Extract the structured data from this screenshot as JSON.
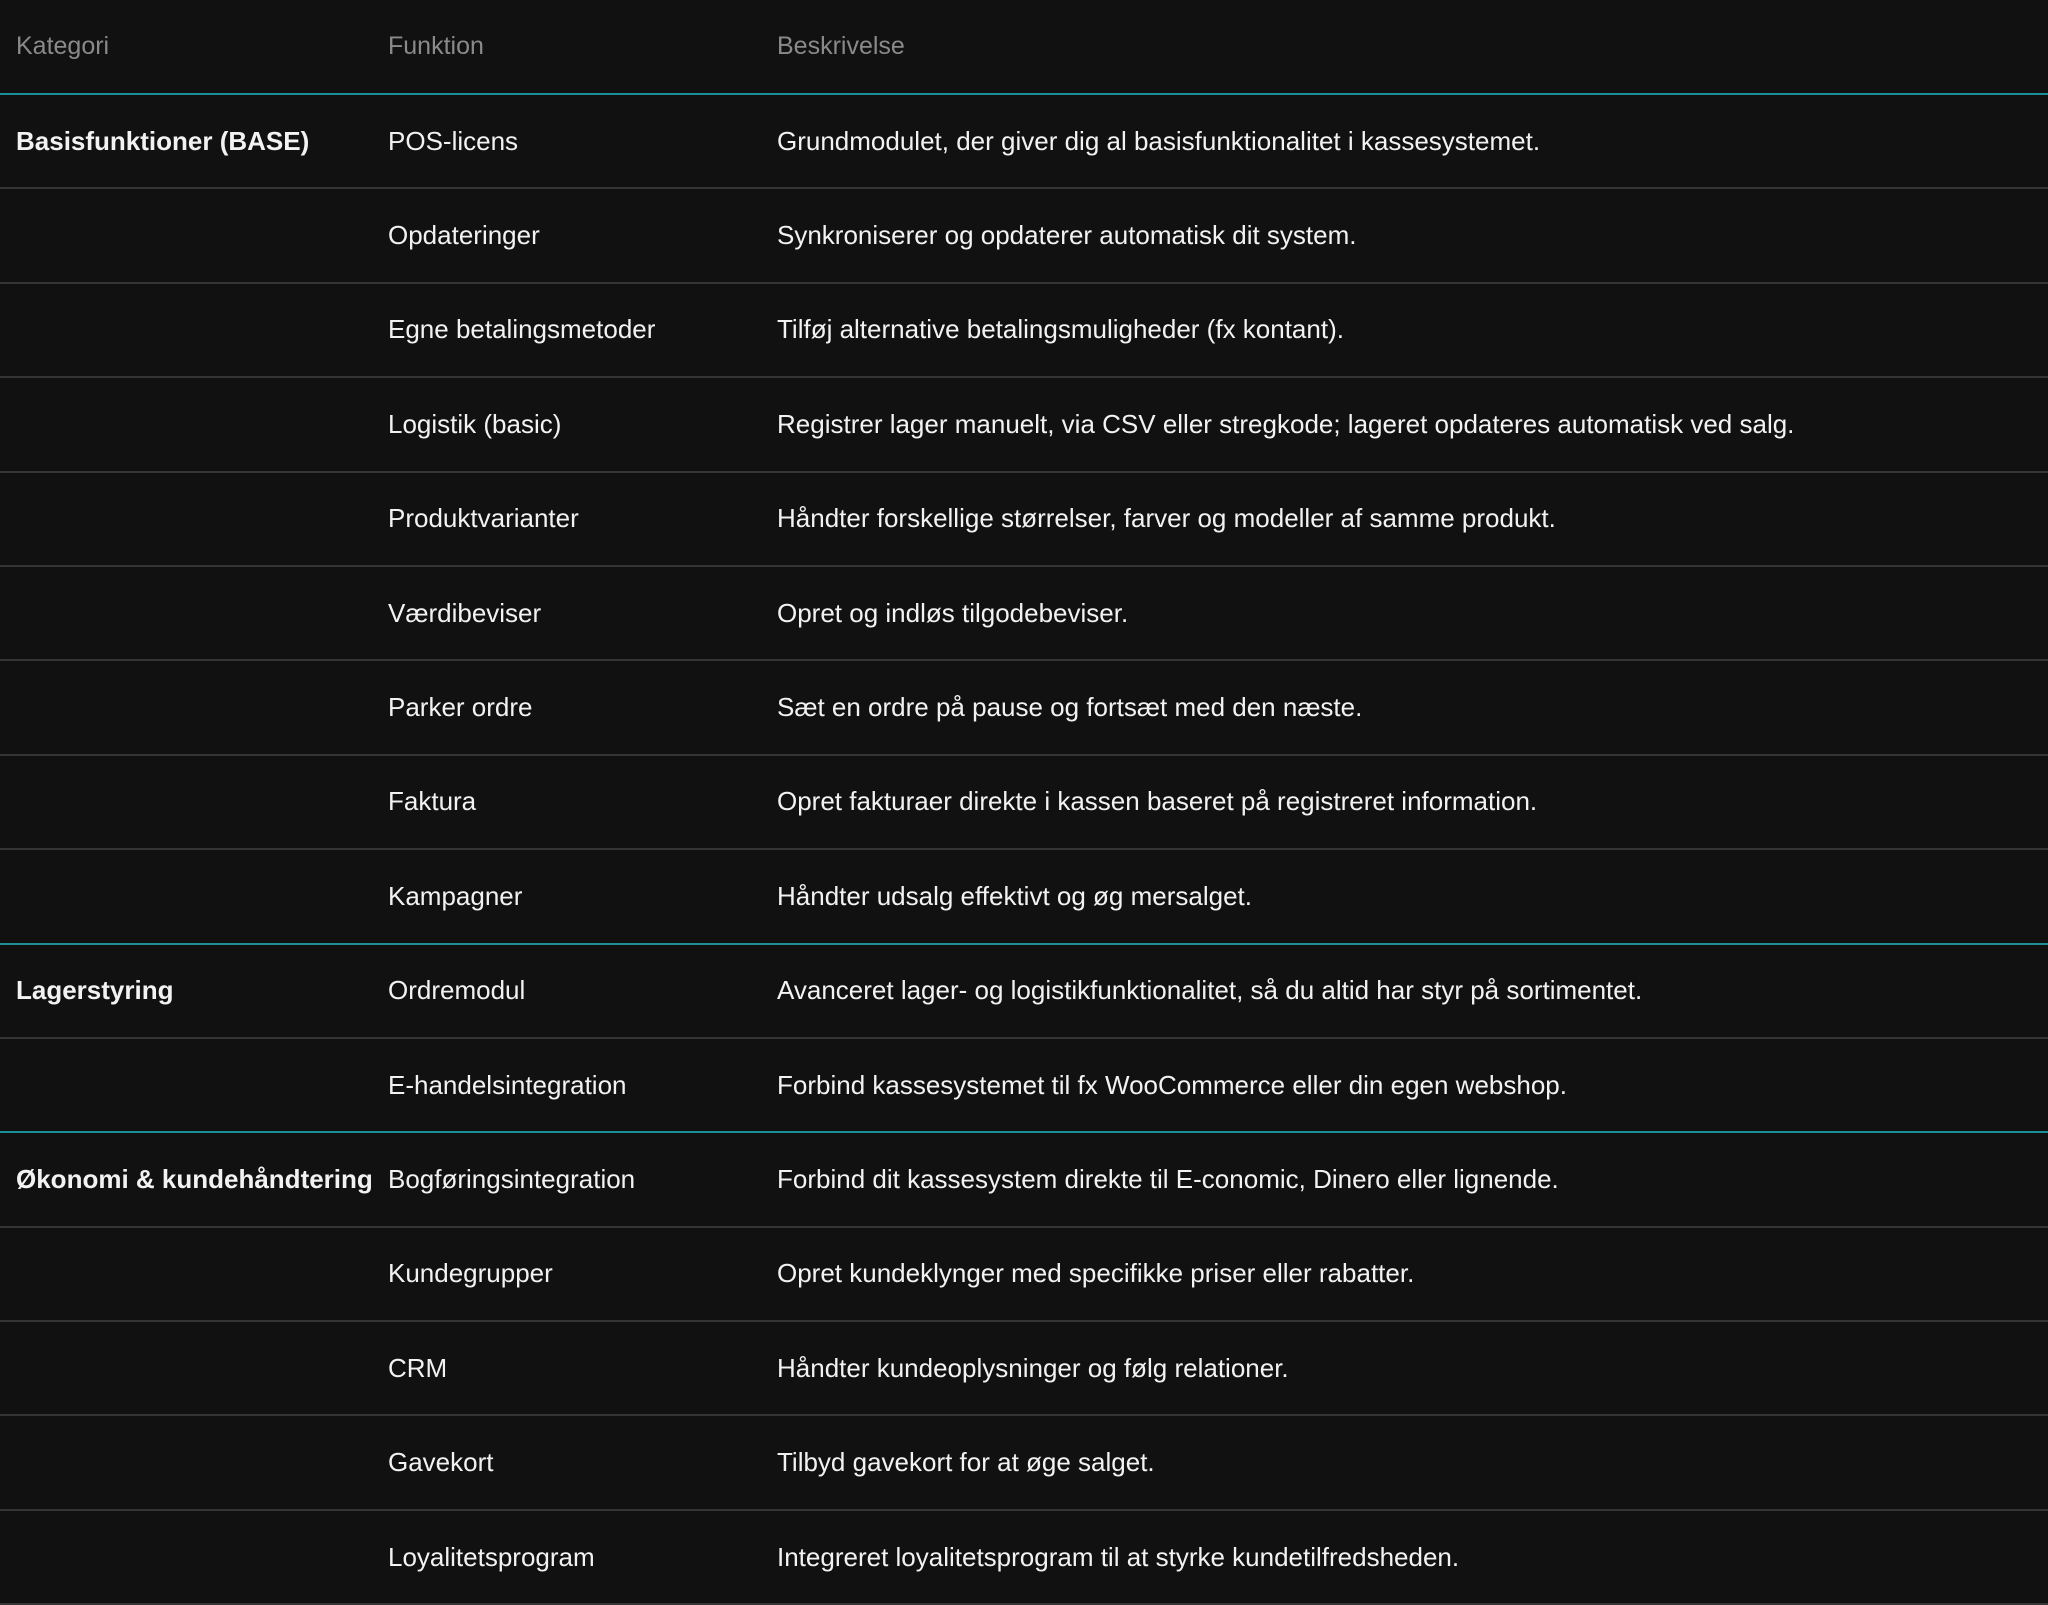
{
  "headers": {
    "category": "Kategori",
    "function": "Funktion",
    "description": "Beskrivelse"
  },
  "accent_color": "#1b8f98",
  "rows": [
    {
      "category": "Basisfunktioner (BASE)",
      "function": "POS-licens",
      "description": "Grundmodulet, der giver dig al basisfunktionalitet i kassesystemet."
    },
    {
      "category": "",
      "function": "Opdateringer",
      "description": "Synkroniserer og opdaterer automatisk dit system."
    },
    {
      "category": "",
      "function": "Egne betalingsmetoder",
      "description": "Tilføj alternative betalingsmuligheder (fx kontant)."
    },
    {
      "category": "",
      "function": "Logistik (basic)",
      "description": "Registrer lager manuelt, via CSV eller stregkode; lageret opdateres automatisk ved salg."
    },
    {
      "category": "",
      "function": "Produktvarianter",
      "description": "Håndter forskellige størrelser, farver og modeller af samme produkt."
    },
    {
      "category": "",
      "function": "Værdibeviser",
      "description": "Opret og indløs tilgodebeviser."
    },
    {
      "category": "",
      "function": "Parker ordre",
      "description": "Sæt en ordre på pause og fortsæt med den næste."
    },
    {
      "category": "",
      "function": "Faktura",
      "description": "Opret fakturaer direkte i kassen baseret på registreret information."
    },
    {
      "category": "",
      "function": "Kampagner",
      "description": "Håndter udsalg effektivt og øg mersalget."
    },
    {
      "category": "Lagerstyring",
      "function": "Ordremodul",
      "description": "Avanceret lager- og logistikfunktionalitet, så du altid har styr på sortimentet."
    },
    {
      "category": "",
      "function": "E-handelsintegration",
      "description": "Forbind kassesystemet til fx WooCommerce eller din egen webshop."
    },
    {
      "category": "Økonomi & kundehåndtering",
      "function": "Bogføringsintegration",
      "description": "Forbind dit kassesystem direkte til E-conomic, Dinero eller lignende."
    },
    {
      "category": "",
      "function": "Kundegrupper",
      "description": "Opret kundeklynger med specifikke priser eller rabatter."
    },
    {
      "category": "",
      "function": "CRM",
      "description": "Håndter kundeoplysninger og følg relationer."
    },
    {
      "category": "",
      "function": "Gavekort",
      "description": "Tilbyd gavekort for at øge salget."
    },
    {
      "category": "",
      "function": "Loyalitetsprogram",
      "description": "Integreret loyalitetsprogram til at styrke kundetilfredsheden."
    }
  ]
}
